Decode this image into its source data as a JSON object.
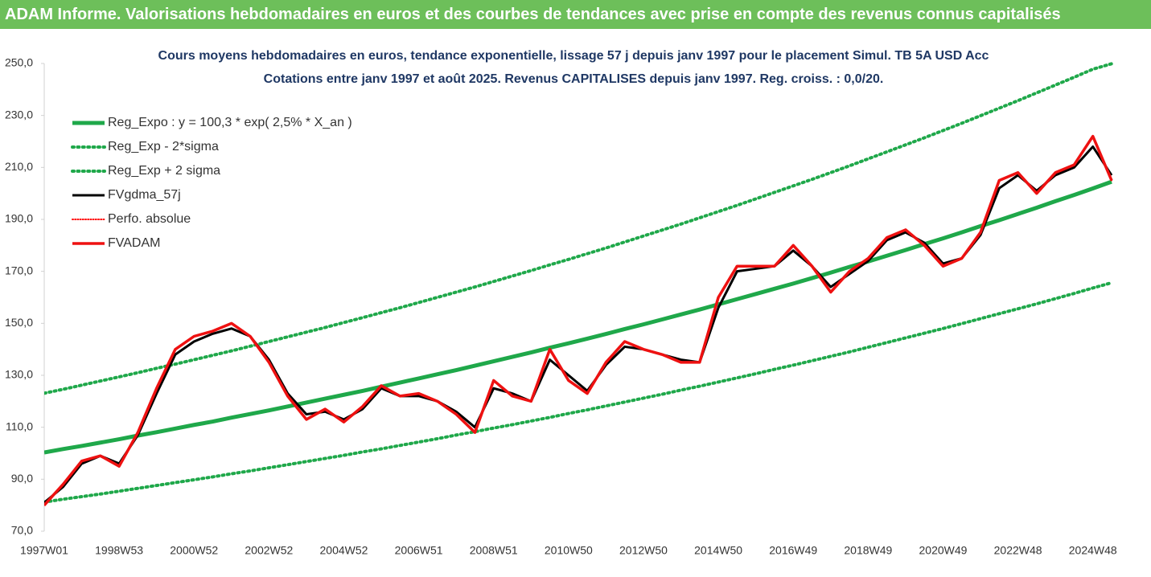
{
  "header": {
    "title": "ADAM Informe. Valorisations hebdomadaires en euros et des courbes de tendances avec prise en compte des revenus connus capitalisés"
  },
  "chart_data": {
    "type": "line",
    "subtitle": [
      "Cours moyens hebdomadaires en euros, tendance exponentielle, lissage 57 j depuis janv 1997 pour le placement Simul. TB 5A USD Acc",
      "Cotations entre janv 1997 et août 2025.  Revenus CAPITALISES depuis janv 1997. Reg. croiss. : 0,0/20."
    ],
    "categories": [
      "1997W01",
      null,
      null,
      null,
      "1998W53",
      null,
      null,
      null,
      "2000W52",
      null,
      null,
      null,
      "2002W52",
      null,
      null,
      null,
      "2004W52",
      null,
      null,
      null,
      "2006W51",
      null,
      null,
      null,
      "2008W51",
      null,
      null,
      null,
      "2010W50",
      null,
      null,
      null,
      "2012W50",
      null,
      null,
      null,
      "2014W50",
      null,
      null,
      null,
      "2016W49",
      null,
      null,
      null,
      "2018W49",
      null,
      null,
      null,
      "2020W49",
      null,
      null,
      null,
      "2022W48",
      null,
      null,
      null,
      "2024W48",
      null
    ],
    "ylim": [
      70,
      250
    ],
    "yticks": [
      {
        "value": 70,
        "label": "70,0"
      },
      {
        "value": 90,
        "label": "90,0"
      },
      {
        "value": 110,
        "label": "110,0"
      },
      {
        "value": 130,
        "label": "130,0"
      },
      {
        "value": 150,
        "label": "150,0"
      },
      {
        "value": 170,
        "label": "170,0"
      },
      {
        "value": 190,
        "label": "190,0"
      },
      {
        "value": 210,
        "label": "210,0"
      },
      {
        "value": 230,
        "label": "230,0"
      },
      {
        "value": 250,
        "label": "250,0"
      }
    ],
    "grid": false,
    "series": [
      {
        "name": "Reg_Expo : y = 100,3 * exp( 2,5% *  X_an )",
        "color": "#1fa84a",
        "dash": "solid",
        "width": 5,
        "values": [
          100.3,
          101.6,
          102.8,
          104.1,
          105.4,
          106.8,
          108.1,
          109.5,
          110.9,
          112.2,
          113.7,
          115.1,
          116.5,
          118.0,
          119.5,
          121.0,
          122.5,
          124.0,
          125.6,
          127.2,
          128.8,
          130.4,
          132.0,
          133.7,
          135.4,
          137.1,
          138.8,
          140.6,
          142.3,
          144.1,
          145.9,
          147.8,
          149.6,
          151.5,
          153.4,
          155.3,
          157.3,
          159.3,
          161.3,
          163.3,
          165.3,
          167.4,
          169.5,
          171.7,
          173.8,
          176.0,
          178.2,
          180.5,
          182.7,
          185.0,
          187.4,
          189.7,
          192.1,
          194.5,
          197.0,
          199.4,
          201.9,
          204.5
        ]
      },
      {
        "name": "Reg_Exp - 2*sigma",
        "color": "#1fa84a",
        "dash": "dotted",
        "width": 4,
        "values": [
          81.2,
          82.3,
          83.3,
          84.3,
          85.4,
          86.5,
          87.6,
          88.7,
          89.8,
          90.9,
          92.1,
          93.2,
          94.4,
          95.6,
          96.8,
          98.0,
          99.2,
          100.5,
          101.7,
          103.0,
          104.3,
          105.6,
          107.0,
          108.3,
          109.7,
          111.0,
          112.4,
          113.8,
          115.3,
          116.7,
          118.2,
          119.7,
          121.2,
          122.7,
          124.3,
          125.8,
          127.4,
          129.0,
          130.6,
          132.3,
          133.9,
          135.6,
          137.3,
          139.0,
          140.8,
          142.6,
          144.4,
          146.2,
          148.0,
          149.9,
          151.8,
          153.7,
          155.6,
          157.5,
          159.5,
          161.5,
          163.6,
          165.6
        ]
      },
      {
        "name": "Reg_Exp + 2 sigma",
        "color": "#1fa84a",
        "dash": "dotted",
        "width": 4,
        "values": [
          123.1,
          124.6,
          126.2,
          127.8,
          129.4,
          131.0,
          132.7,
          134.3,
          136.0,
          137.7,
          139.4,
          141.2,
          143.0,
          144.8,
          146.6,
          148.4,
          150.3,
          152.2,
          154.1,
          156.0,
          158.0,
          160.0,
          162.0,
          164.0,
          166.1,
          168.2,
          170.3,
          172.5,
          174.6,
          176.8,
          179.0,
          181.3,
          183.6,
          185.9,
          188.2,
          190.6,
          193.0,
          195.4,
          197.9,
          200.4,
          202.9,
          205.4,
          208.0,
          210.6,
          213.3,
          216.0,
          218.7,
          221.4,
          224.2,
          227.0,
          229.9,
          232.8,
          235.7,
          238.7,
          241.7,
          244.7,
          247.8,
          249.9
        ]
      },
      {
        "name": "FVgdma_57j",
        "color": "#000000",
        "dash": "solid",
        "width": 3,
        "values": [
          81,
          87,
          96,
          99,
          96,
          107,
          123,
          138,
          143,
          146,
          148,
          145,
          136,
          123,
          115,
          116,
          113,
          117,
          125,
          122,
          122,
          120,
          116,
          110,
          125,
          123,
          120,
          136,
          130,
          124,
          134,
          141,
          140,
          138,
          136,
          135,
          156,
          170,
          171,
          172,
          178,
          172,
          164,
          169,
          174,
          182,
          185,
          181,
          173,
          175,
          184,
          202,
          207,
          201,
          207,
          210,
          218,
          207
        ]
      },
      {
        "name": "Perfo. absolue",
        "color": "#ff0000",
        "dash": "dotted",
        "width": 2,
        "values": [
          80,
          88,
          97,
          99,
          95,
          108,
          125,
          140,
          145,
          147,
          150,
          145,
          135,
          122,
          113,
          117,
          112,
          118,
          126,
          122,
          123,
          120,
          115,
          108,
          128,
          122,
          120,
          140,
          128,
          123,
          135,
          143,
          140,
          138,
          135,
          135,
          160,
          172,
          172,
          172,
          180,
          172,
          162,
          170,
          175,
          183,
          186,
          180,
          172,
          175,
          185,
          205,
          208,
          200,
          208,
          211,
          222,
          205
        ]
      },
      {
        "name": "FVADAM",
        "color": "#ee1111",
        "dash": "solid",
        "width": 3.5,
        "values": [
          80,
          88,
          97,
          99,
          95,
          108,
          125,
          140,
          145,
          147,
          150,
          145,
          135,
          122,
          113,
          117,
          112,
          118,
          126,
          122,
          123,
          120,
          115,
          108,
          128,
          122,
          120,
          140,
          128,
          123,
          135,
          143,
          140,
          138,
          135,
          135,
          160,
          172,
          172,
          172,
          180,
          172,
          162,
          170,
          175,
          183,
          186,
          180,
          172,
          175,
          185,
          205,
          208,
          200,
          208,
          211,
          222,
          205
        ]
      }
    ]
  }
}
